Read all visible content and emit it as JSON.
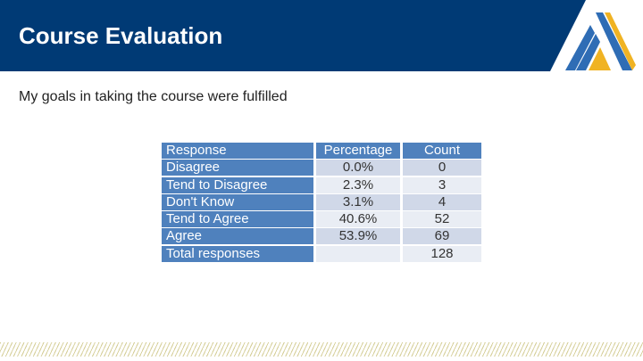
{
  "header": {
    "title": "Course Evaluation"
  },
  "question": "My goals in taking the course were fulfilled",
  "table": {
    "headers": {
      "response": "Response",
      "percentage": "Percentage",
      "count": "Count"
    },
    "rows": [
      {
        "response": "Disagree",
        "percentage": "0.0%",
        "count": "0"
      },
      {
        "response": "Tend to Disagree",
        "percentage": "2.3%",
        "count": "3"
      },
      {
        "response": "Don't Know",
        "percentage": "3.1%",
        "count": "4"
      },
      {
        "response": "Tend to Agree",
        "percentage": "40.6%",
        "count": "52"
      },
      {
        "response": "Agree",
        "percentage": "53.9%",
        "count": "69"
      },
      {
        "response": "Total responses",
        "percentage": "",
        "count": "128"
      }
    ]
  },
  "colors": {
    "header_bg": "#003a75",
    "table_header": "#4f81bd",
    "row_alt": "#d0d8e8",
    "row_light": "#e9edf4",
    "logo_blue": "#2f6db5",
    "logo_gold": "#f0b323"
  },
  "icons": {
    "logo": "triangle-stripes-logo"
  }
}
